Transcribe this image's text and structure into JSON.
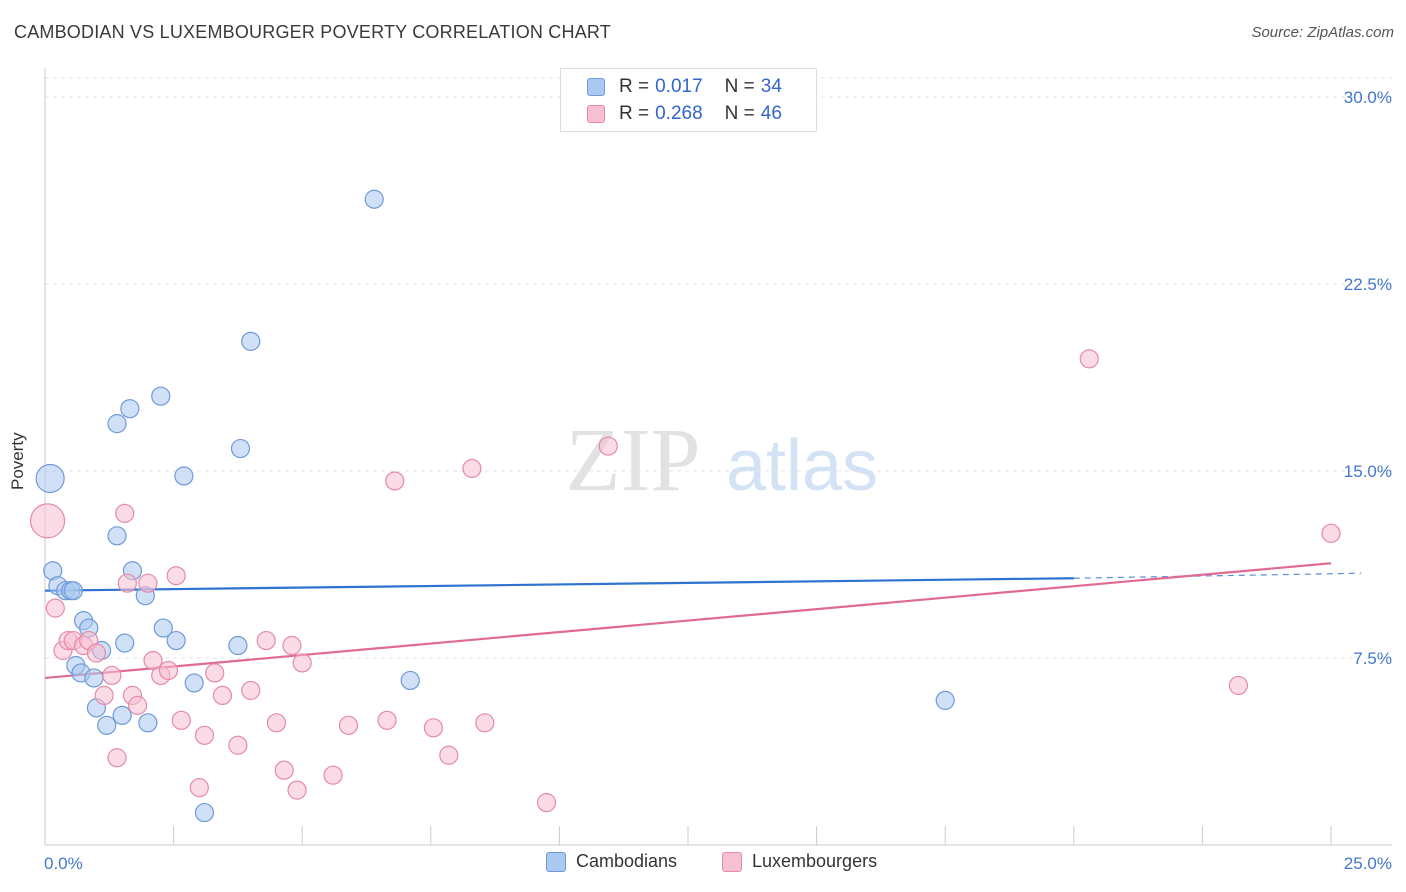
{
  "title": "CAMBODIAN VS LUXEMBOURGER POVERTY CORRELATION CHART",
  "source": "Source: ZipAtlas.com",
  "watermark": {
    "zip": "ZIP",
    "atlas": "atlas"
  },
  "legend": {
    "rows": [
      {
        "r_label": "R =",
        "r_value": "0.017",
        "n_label": "N =",
        "n_value": "34",
        "color": "#aac8f0",
        "border": "#6f9ad8"
      },
      {
        "r_label": "R =",
        "r_value": "0.268",
        "n_label": "N =",
        "n_value": "46",
        "color": "#f7bfd2",
        "border": "#e58aa8"
      }
    ]
  },
  "bottom_legend": [
    "Cambodians",
    "Luxembourgers"
  ],
  "colors": {
    "cambodians_fill": "#aac8f0",
    "cambodians_stroke": "#6f9ad8",
    "cambodians_line": "#2f72cf",
    "luxembourgers_fill": "#f7bfd2",
    "luxembourgers_stroke": "#e58aa8",
    "luxembourgers_line": "#e06a94",
    "axis_label": "#4477cc"
  },
  "chart_data": {
    "type": "scatter",
    "ylabel": "Poverty",
    "xlim": [
      0,
      25
    ],
    "ylim": [
      0,
      30
    ],
    "x_tick_labels": [
      "0.0%",
      "25.0%"
    ],
    "y_ticks": [
      7.5,
      15.0,
      22.5,
      30.0
    ],
    "y_tick_labels": [
      "7.5%",
      "15.0%",
      "22.5%",
      "30.0%"
    ],
    "grid": true,
    "series": [
      {
        "name": "Cambodians",
        "points": [
          [
            0.1,
            14.7,
            14
          ],
          [
            0.15,
            11.0,
            9
          ],
          [
            0.25,
            10.4,
            9
          ],
          [
            0.4,
            10.2,
            9
          ],
          [
            0.5,
            10.2,
            9
          ],
          [
            0.75,
            9.0,
            9
          ],
          [
            0.85,
            8.7,
            9
          ],
          [
            1.1,
            7.8,
            9
          ],
          [
            0.6,
            7.2,
            9
          ],
          [
            0.7,
            6.9,
            9
          ],
          [
            0.95,
            6.7,
            9
          ],
          [
            1.0,
            5.5,
            9
          ],
          [
            1.2,
            4.8,
            9
          ],
          [
            1.5,
            5.2,
            9
          ],
          [
            1.55,
            8.1,
            9
          ],
          [
            1.4,
            12.4,
            9
          ],
          [
            1.4,
            16.9,
            9
          ],
          [
            1.65,
            17.5,
            9
          ],
          [
            1.7,
            11.0,
            9
          ],
          [
            1.95,
            10.0,
            9
          ],
          [
            2.0,
            4.9,
            9
          ],
          [
            2.25,
            18.0,
            9
          ],
          [
            2.3,
            8.7,
            9
          ],
          [
            2.55,
            8.2,
            9
          ],
          [
            2.7,
            14.8,
            9
          ],
          [
            2.9,
            6.5,
            9
          ],
          [
            3.1,
            1.3,
            9
          ],
          [
            3.75,
            8.0,
            9
          ],
          [
            3.8,
            15.9,
            9
          ],
          [
            4.0,
            20.2,
            9
          ],
          [
            6.4,
            25.9,
            9
          ],
          [
            7.1,
            6.6,
            9
          ],
          [
            17.5,
            5.8,
            9
          ],
          [
            0.55,
            10.2,
            9
          ]
        ],
        "trend": {
          "x": [
            0,
            20
          ],
          "y": [
            10.2,
            10.7
          ],
          "dashed_to": [
            25,
            10.9
          ]
        }
      },
      {
        "name": "Luxembourgers",
        "points": [
          [
            0.05,
            13.0,
            17
          ],
          [
            0.2,
            9.5,
            9
          ],
          [
            0.35,
            7.8,
            9
          ],
          [
            0.45,
            8.2,
            9
          ],
          [
            0.55,
            8.2,
            9
          ],
          [
            0.75,
            8.0,
            9
          ],
          [
            0.85,
            8.2,
            9
          ],
          [
            1.0,
            7.7,
            9
          ],
          [
            1.15,
            6.0,
            9
          ],
          [
            1.3,
            6.8,
            9
          ],
          [
            1.4,
            3.5,
            9
          ],
          [
            1.55,
            13.3,
            9
          ],
          [
            1.6,
            10.5,
            9
          ],
          [
            1.7,
            6.0,
            9
          ],
          [
            1.8,
            5.6,
            9
          ],
          [
            2.0,
            10.5,
            9
          ],
          [
            2.1,
            7.4,
            9
          ],
          [
            2.25,
            6.8,
            9
          ],
          [
            2.4,
            7.0,
            9
          ],
          [
            2.55,
            10.8,
            9
          ],
          [
            2.65,
            5.0,
            9
          ],
          [
            3.0,
            2.3,
            9
          ],
          [
            3.1,
            4.4,
            9
          ],
          [
            3.3,
            6.9,
            9
          ],
          [
            3.45,
            6.0,
            9
          ],
          [
            3.75,
            4.0,
            9
          ],
          [
            4.0,
            6.2,
            9
          ],
          [
            4.3,
            8.2,
            9
          ],
          [
            4.5,
            4.9,
            9
          ],
          [
            4.65,
            3.0,
            9
          ],
          [
            4.8,
            8.0,
            9
          ],
          [
            4.9,
            2.2,
            9
          ],
          [
            5.0,
            7.3,
            9
          ],
          [
            5.6,
            2.8,
            9
          ],
          [
            5.9,
            4.8,
            9
          ],
          [
            6.65,
            5.0,
            9
          ],
          [
            6.8,
            14.6,
            9
          ],
          [
            7.55,
            4.7,
            9
          ],
          [
            7.85,
            3.6,
            9
          ],
          [
            8.3,
            15.1,
            9
          ],
          [
            8.55,
            4.9,
            9
          ],
          [
            9.75,
            1.7,
            9
          ],
          [
            10.95,
            16.0,
            9
          ],
          [
            20.3,
            19.5,
            9
          ],
          [
            23.2,
            6.4,
            9
          ],
          [
            25.0,
            12.5,
            9
          ]
        ],
        "trend": {
          "x": [
            0,
            25
          ],
          "y": [
            6.7,
            11.3
          ]
        }
      }
    ]
  }
}
